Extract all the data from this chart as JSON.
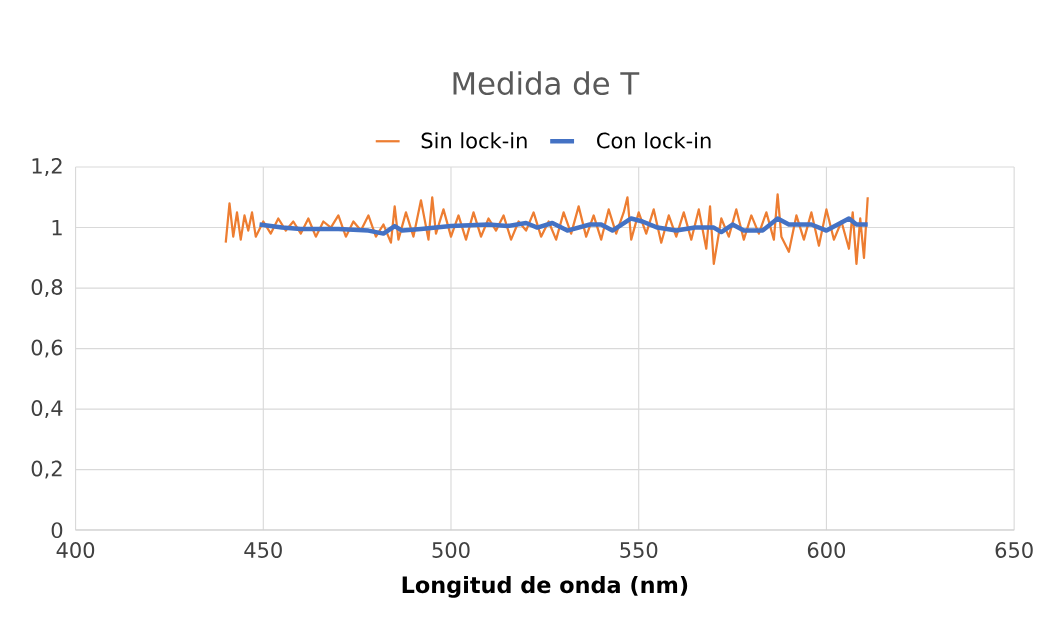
{
  "chart_data": {
    "type": "line",
    "title": "Medida de T",
    "xlabel": "Longitud de onda (nm)",
    "xlim": [
      400,
      650
    ],
    "xticks": [
      400,
      450,
      500,
      550,
      600,
      650
    ],
    "ylim": [
      0,
      1.2
    ],
    "yticks": [
      0,
      {
        "value": 0.2,
        "label": "0,2"
      },
      {
        "value": 0.4,
        "label": "0,4"
      },
      {
        "value": 0.6,
        "label": "0,6"
      },
      {
        "value": 0.8,
        "label": "0,8"
      },
      1,
      {
        "value": 1.2,
        "label": "1,2"
      }
    ],
    "grid": true,
    "legend": "top",
    "marker": "none",
    "series": [
      {
        "name": "Sin lock-in",
        "color": "#ed7d31",
        "x": [
          440,
          441,
          442,
          443,
          444,
          445,
          446,
          447,
          448,
          450,
          452,
          454,
          456,
          458,
          460,
          462,
          464,
          466,
          468,
          470,
          472,
          474,
          476,
          478,
          480,
          482,
          484,
          485,
          486,
          488,
          490,
          492,
          494,
          495,
          496,
          498,
          500,
          502,
          504,
          506,
          508,
          510,
          512,
          514,
          516,
          518,
          520,
          522,
          524,
          526,
          528,
          530,
          532,
          534,
          536,
          538,
          540,
          542,
          544,
          546,
          547,
          548,
          550,
          552,
          554,
          556,
          558,
          560,
          562,
          564,
          566,
          568,
          569,
          570,
          572,
          574,
          576,
          578,
          580,
          582,
          584,
          586,
          587,
          588,
          590,
          592,
          594,
          596,
          598,
          600,
          602,
          604,
          606,
          607,
          608,
          609,
          610,
          611
        ],
        "values": [
          0.95,
          1.08,
          0.97,
          1.05,
          0.96,
          1.04,
          0.99,
          1.05,
          0.97,
          1.02,
          0.98,
          1.03,
          0.99,
          1.02,
          0.98,
          1.03,
          0.97,
          1.02,
          1.0,
          1.04,
          0.97,
          1.02,
          0.99,
          1.04,
          0.97,
          1.01,
          0.95,
          1.07,
          0.96,
          1.05,
          0.97,
          1.09,
          0.96,
          1.1,
          0.98,
          1.06,
          0.97,
          1.04,
          0.96,
          1.05,
          0.97,
          1.03,
          0.99,
          1.04,
          0.96,
          1.02,
          0.99,
          1.05,
          0.97,
          1.02,
          0.96,
          1.05,
          0.98,
          1.07,
          0.97,
          1.04,
          0.96,
          1.06,
          0.98,
          1.05,
          1.1,
          0.96,
          1.05,
          0.98,
          1.06,
          0.95,
          1.04,
          0.97,
          1.05,
          0.96,
          1.06,
          0.93,
          1.07,
          0.88,
          1.03,
          0.97,
          1.06,
          0.96,
          1.04,
          0.98,
          1.05,
          0.96,
          1.11,
          0.97,
          0.92,
          1.04,
          0.96,
          1.05,
          0.94,
          1.06,
          0.96,
          1.02,
          0.93,
          1.05,
          0.88,
          1.03,
          0.9,
          1.1
        ]
      },
      {
        "name": "Con lock-in",
        "color": "#4472c4",
        "x": [
          449,
          455,
          460,
          470,
          478,
          482,
          485,
          487,
          492,
          500,
          510,
          515,
          520,
          523,
          527,
          531,
          537,
          540,
          543,
          548,
          551,
          555,
          560,
          565,
          570,
          572,
          575,
          578,
          583,
          587,
          590,
          596,
          600,
          606,
          608,
          611
        ],
        "values": [
          1.01,
          1.0,
          0.995,
          0.995,
          0.99,
          0.98,
          1.005,
          0.99,
          0.995,
          1.005,
          1.01,
          1.005,
          1.015,
          1.0,
          1.015,
          0.99,
          1.01,
          1.01,
          0.99,
          1.03,
          1.02,
          1.0,
          0.99,
          1.0,
          1.0,
          0.985,
          1.01,
          0.99,
          0.99,
          1.03,
          1.01,
          1.01,
          0.99,
          1.03,
          1.01,
          1.01
        ]
      }
    ]
  }
}
